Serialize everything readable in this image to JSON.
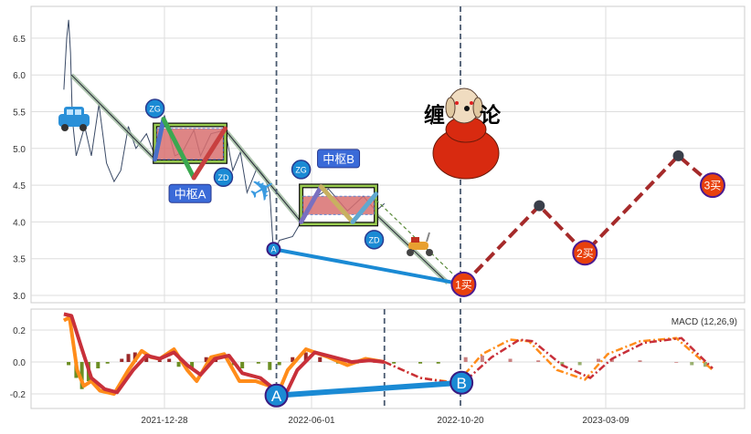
{
  "chart_data": [
    {
      "type": "line",
      "panel": "price",
      "ylim": [
        2.9,
        6.95
      ],
      "yticks": [
        "3.0",
        "3.5",
        "4.0",
        "4.5",
        "5.0",
        "5.5",
        "6.0",
        "6.5"
      ],
      "grid": true,
      "price": [
        [
          "2021-09-13",
          5.8
        ],
        [
          "2021-09-16",
          6.5
        ],
        [
          "2021-09-18",
          6.75
        ],
        [
          "2021-09-20",
          6.3
        ],
        [
          "2021-09-22",
          5.4
        ],
        [
          "2021-09-26",
          4.9
        ],
        [
          "2021-10-05",
          5.3
        ],
        [
          "2021-10-12",
          4.9
        ],
        [
          "2021-10-20",
          5.6
        ],
        [
          "2021-10-28",
          4.8
        ],
        [
          "2021-11-05",
          4.55
        ],
        [
          "2021-11-12",
          4.7
        ],
        [
          "2021-11-20",
          5.3
        ],
        [
          "2021-11-28",
          5.0
        ],
        [
          "2021-12-09",
          5.2
        ],
        [
          "2021-12-18",
          4.9
        ],
        [
          "2021-12-28",
          5.45
        ],
        [
          "2022-01-08",
          4.9
        ],
        [
          "2022-01-16",
          4.95
        ],
        [
          "2022-01-28",
          5.25
        ],
        [
          "2022-02-04",
          4.9
        ],
        [
          "2022-02-15",
          5.2
        ],
        [
          "2022-03-02",
          5.25
        ],
        [
          "2022-03-10",
          4.7
        ],
        [
          "2022-03-18",
          4.95
        ],
        [
          "2022-03-25",
          4.4
        ],
        [
          "2022-04-05",
          4.75
        ],
        [
          "2022-04-13",
          4.6
        ],
        [
          "2022-04-18",
          4.4
        ],
        [
          "2022-04-22",
          3.55
        ],
        [
          "2022-04-28",
          3.75
        ],
        [
          "2022-05-12",
          3.8
        ],
        [
          "2022-05-21",
          4.0
        ],
        [
          "2022-06-01",
          4.3
        ],
        [
          "2022-06-17",
          4.45
        ],
        [
          "2022-07-05",
          4.15
        ],
        [
          "2022-07-20",
          4.35
        ],
        [
          "2022-08-01",
          4.15
        ],
        [
          "2022-08-09",
          4.25
        ]
      ],
      "trend_segments": [
        [
          [
            "2021-09-21",
            6.0
          ],
          [
            "2021-12-18",
            4.85
          ]
        ],
        [
          [
            "2022-03-02",
            5.25
          ],
          [
            "2022-05-21",
            4.0
          ]
        ],
        [
          [
            "2022-08-01",
            4.1
          ],
          [
            "2022-10-08",
            3.17
          ]
        ]
      ],
      "zhongshu": [
        {
          "label": "中枢A",
          "start": "2021-12-18",
          "end": "2022-03-02",
          "top": 5.32,
          "bottom": 4.82,
          "zg": 5.27,
          "zd": 4.85,
          "strokes": [
            [
              [
                "2021-12-18",
                4.85
              ],
              [
                "2021-12-27",
                5.4
              ]
            ],
            [
              [
                "2021-12-27",
                5.4
              ],
              [
                "2022-01-28",
                4.6
              ]
            ],
            [
              [
                "2022-01-28",
                4.6
              ],
              [
                "2022-03-02",
                5.27
              ]
            ]
          ]
        },
        {
          "label": "中枢B",
          "start": "2022-05-21",
          "end": "2022-08-01",
          "top": 4.49,
          "bottom": 3.97,
          "zg": 4.35,
          "zd": 4.1,
          "strokes": [
            [
              [
                "2022-05-21",
                4.0
              ],
              [
                "2022-06-10",
                4.48
              ]
            ],
            [
              [
                "2022-06-10",
                4.48
              ],
              [
                "2022-07-10",
                4.0
              ]
            ],
            [
              [
                "2022-07-10",
                4.0
              ],
              [
                "2022-08-01",
                4.38
              ]
            ]
          ]
        }
      ],
      "zg_label": "ZG",
      "zd_label": "ZD",
      "divergence_points": [
        {
          "label": "A",
          "date": "2022-04-22",
          "value": 3.63
        },
        {
          "label": "1买",
          "date": "2022-10-23",
          "value": 3.15
        }
      ],
      "projection": [
        [
          "2022-10-23",
          3.15
        ],
        [
          "2023-01-04",
          4.22
        ],
        [
          "2023-02-17",
          3.58
        ],
        [
          "2023-05-18",
          4.9
        ],
        [
          "2023-06-20",
          4.5
        ]
      ],
      "buy_points": [
        {
          "label": "1买",
          "date": "2022-10-23",
          "value": 3.15
        },
        {
          "label": "2买",
          "date": "2023-02-17",
          "value": 3.58
        },
        {
          "label": "3买",
          "date": "2023-06-20",
          "value": 4.5
        }
      ],
      "vlines": [
        "2022-04-25",
        "2022-10-20"
      ],
      "logo_text": [
        "缠",
        "论"
      ],
      "colors": {
        "price": "#3a4a66",
        "box_fill": "#d97070",
        "box_border": "#9acd50",
        "buy": "#e8400c",
        "divergence": "#1a8ad4",
        "projection": "#a52a2a"
      }
    },
    {
      "type": "line",
      "panel": "macd",
      "title": "MACD (12,26,9)",
      "ylim": [
        -0.29,
        0.33
      ],
      "yticks": [
        "0.2",
        "0.0",
        "-0.2"
      ],
      "xticks": [
        "2021-12-28",
        "2022-06-01",
        "2022-10-20",
        "2023-03-09"
      ],
      "grid": true,
      "dif": [
        [
          "2021-09-13",
          0.26
        ],
        [
          "2021-09-19",
          0.28
        ],
        [
          "2021-09-27",
          -0.05
        ],
        [
          "2021-10-04",
          -0.15
        ],
        [
          "2021-10-12",
          -0.12
        ],
        [
          "2021-10-21",
          -0.18
        ],
        [
          "2021-11-05",
          -0.2
        ],
        [
          "2021-11-20",
          -0.05
        ],
        [
          "2021-12-04",
          0.07
        ],
        [
          "2021-12-14",
          0.03
        ],
        [
          "2021-12-23",
          0.02
        ],
        [
          "2022-01-07",
          0.08
        ],
        [
          "2022-01-21",
          -0.05
        ],
        [
          "2022-01-31",
          -0.12
        ],
        [
          "2022-02-15",
          0.03
        ],
        [
          "2022-03-01",
          0.05
        ],
        [
          "2022-03-17",
          -0.12
        ],
        [
          "2022-04-03",
          -0.12
        ],
        [
          "2022-04-18",
          -0.15
        ],
        [
          "2022-04-25",
          -0.22
        ],
        [
          "2022-05-07",
          -0.05
        ],
        [
          "2022-05-26",
          0.08
        ],
        [
          "2022-06-17",
          0.03
        ],
        [
          "2022-07-05",
          -0.02
        ],
        [
          "2022-07-22",
          0.02
        ],
        [
          "2022-08-09",
          0.0
        ]
      ],
      "dea": [
        [
          "2021-09-13",
          0.3
        ],
        [
          "2021-09-21",
          0.29
        ],
        [
          "2021-10-01",
          0.1
        ],
        [
          "2021-10-12",
          -0.1
        ],
        [
          "2021-10-26",
          -0.17
        ],
        [
          "2021-11-08",
          -0.19
        ],
        [
          "2021-11-25",
          -0.05
        ],
        [
          "2021-12-09",
          0.04
        ],
        [
          "2021-12-23",
          0.02
        ],
        [
          "2022-01-07",
          0.06
        ],
        [
          "2022-01-21",
          -0.02
        ],
        [
          "2022-02-04",
          -0.08
        ],
        [
          "2022-02-19",
          0.02
        ],
        [
          "2022-03-06",
          0.04
        ],
        [
          "2022-03-20",
          -0.07
        ],
        [
          "2022-04-08",
          -0.1
        ],
        [
          "2022-04-23",
          -0.17
        ],
        [
          "2022-05-01",
          -0.25
        ],
        [
          "2022-05-17",
          -0.05
        ],
        [
          "2022-06-04",
          0.06
        ],
        [
          "2022-06-22",
          0.03
        ],
        [
          "2022-07-09",
          0.0
        ],
        [
          "2022-07-26",
          0.01
        ],
        [
          "2022-08-09",
          0.0
        ]
      ],
      "dif_projection": [
        [
          "2022-08-09",
          0.0
        ],
        [
          "2022-09-12",
          -0.1
        ],
        [
          "2022-10-17",
          -0.13
        ],
        [
          "2022-11-10",
          0.05
        ],
        [
          "2022-12-07",
          0.14
        ],
        [
          "2022-12-25",
          0.13
        ],
        [
          "2023-01-21",
          -0.05
        ],
        [
          "2023-02-17",
          -0.11
        ],
        [
          "2023-03-11",
          0.05
        ],
        [
          "2023-04-11",
          0.13
        ],
        [
          "2023-05-16",
          0.15
        ],
        [
          "2023-06-20",
          -0.05
        ]
      ],
      "dea_projection": [
        [
          "2022-08-09",
          0.0
        ],
        [
          "2022-09-12",
          -0.1
        ],
        [
          "2022-10-21",
          -0.14
        ],
        [
          "2022-11-19",
          0.03
        ],
        [
          "2022-12-16",
          0.14
        ],
        [
          "2022-12-29",
          0.13
        ],
        [
          "2023-01-26",
          -0.02
        ],
        [
          "2023-02-22",
          -0.1
        ],
        [
          "2023-03-15",
          0.02
        ],
        [
          "2023-04-15",
          0.12
        ],
        [
          "2023-05-21",
          0.15
        ],
        [
          "2023-06-20",
          -0.04
        ]
      ],
      "histogram": [
        [
          "2021-09-18",
          -0.02
        ],
        [
          "2021-09-26",
          -0.1
        ],
        [
          "2021-10-02",
          -0.17
        ],
        [
          "2021-10-09",
          -0.12
        ],
        [
          "2021-10-19",
          -0.04
        ],
        [
          "2021-10-29",
          -0.01
        ],
        [
          "2021-11-13",
          0.02
        ],
        [
          "2021-11-20",
          0.05
        ],
        [
          "2021-11-27",
          0.06
        ],
        [
          "2021-12-09",
          0.03
        ],
        [
          "2021-12-23",
          0.01
        ],
        [
          "2022-01-02",
          0.02
        ],
        [
          "2022-01-12",
          -0.03
        ],
        [
          "2022-01-26",
          -0.04
        ],
        [
          "2022-02-10",
          0.03
        ],
        [
          "2022-02-20",
          0.02
        ],
        [
          "2022-03-11",
          -0.02
        ],
        [
          "2022-03-20",
          -0.04
        ],
        [
          "2022-04-06",
          -0.01
        ],
        [
          "2022-04-18",
          -0.05
        ],
        [
          "2022-04-28",
          -0.02
        ],
        [
          "2022-05-12",
          0.03
        ],
        [
          "2022-05-26",
          0.06
        ],
        [
          "2022-06-09",
          0.03
        ],
        [
          "2022-06-26",
          -0.01
        ],
        [
          "2022-07-14",
          -0.01
        ],
        [
          "2022-07-31",
          0.0
        ],
        [
          "2022-08-18",
          -0.01
        ],
        [
          "2022-09-12",
          -0.01
        ],
        [
          "2022-09-29",
          -0.01
        ],
        [
          "2022-10-25",
          0.03
        ],
        [
          "2022-11-10",
          0.04
        ],
        [
          "2022-12-07",
          0.02
        ],
        [
          "2023-01-03",
          0.01
        ],
        [
          "2023-01-26",
          -0.02
        ],
        [
          "2023-02-12",
          -0.02
        ],
        [
          "2023-03-02",
          0.02
        ],
        [
          "2023-03-15",
          0.02
        ],
        [
          "2023-04-11",
          0.01
        ],
        [
          "2023-05-16",
          0.0
        ],
        [
          "2023-05-31",
          -0.02
        ],
        [
          "2023-06-13",
          -0.03
        ]
      ],
      "divergence_points": [
        {
          "label": "A",
          "date": "2022-04-25",
          "value": -0.21
        },
        {
          "label": "B",
          "date": "2022-10-21",
          "value": -0.13
        }
      ],
      "vlines": [
        "2022-04-25",
        "2022-08-09",
        "2022-10-20"
      ],
      "colors": {
        "dif": "#ff8c1a",
        "dea": "#c8303a",
        "hist_pos": "#9b2a2a",
        "hist_neg": "#6b8e23",
        "hist_pos_proj": "#c98080",
        "hist_neg_proj": "#9ab070",
        "divergence": "#1a8ad4"
      }
    }
  ]
}
